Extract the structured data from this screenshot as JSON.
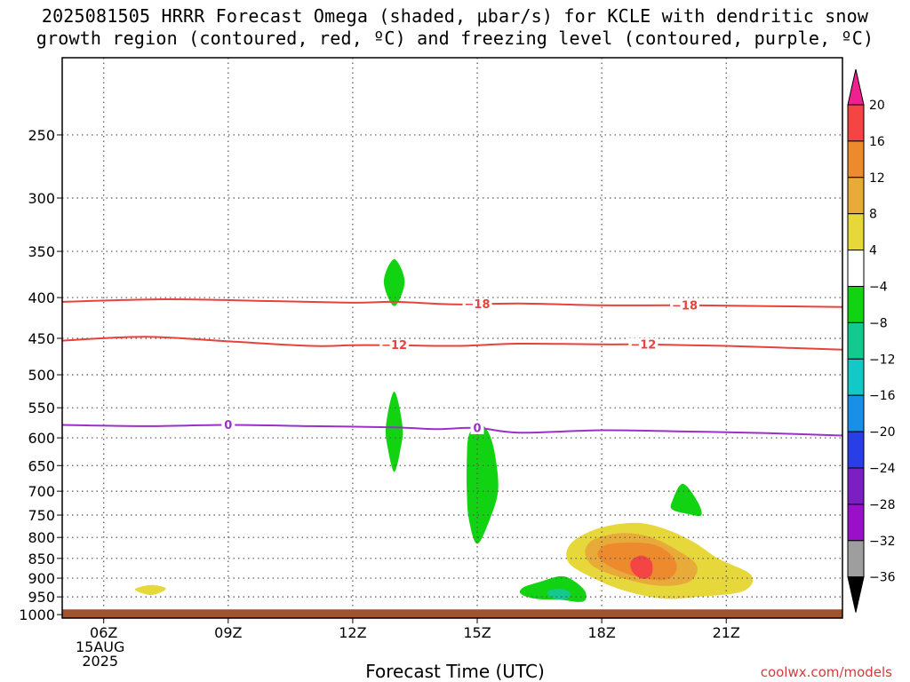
{
  "title": {
    "line1": "2025081505 HRRR Forecast Omega (shaded, μbar/s) for KCLE with dendritic snow",
    "line2": "growth region (contoured, red, ºC) and freezing level (contoured, purple, ºC)"
  },
  "credit": "coolwx.com/models",
  "chart_data": {
    "type": "contour",
    "xlabel": "Forecast Time (UTC)",
    "x_ticks": [
      "06Z",
      "09Z",
      "12Z",
      "15Z",
      "18Z",
      "21Z"
    ],
    "x_tick_hours": [
      6,
      9,
      12,
      15,
      18,
      21
    ],
    "x_date_label": [
      "15AUG",
      "2025"
    ],
    "xlim_hours": [
      5,
      23.8
    ],
    "y_ticks": [
      250,
      300,
      350,
      400,
      450,
      500,
      550,
      600,
      650,
      700,
      750,
      800,
      850,
      900,
      950,
      1000
    ],
    "ylim_hpa": [
      200,
      1010
    ],
    "y_scale": "log-pressure, inverted",
    "grid": "dotted",
    "ground": {
      "from_hpa": 985,
      "color": "#a0522d"
    },
    "contours": [
      {
        "name": "-18",
        "color": "#e8423c",
        "label_hours": [
          15,
          20
        ],
        "points": [
          [
            5,
            405
          ],
          [
            7.5,
            402
          ],
          [
            10,
            404
          ],
          [
            12,
            406
          ],
          [
            13,
            405
          ],
          [
            14.5,
            408
          ],
          [
            16,
            407
          ],
          [
            18,
            409
          ],
          [
            20,
            409
          ],
          [
            22,
            410
          ],
          [
            23.8,
            411
          ]
        ]
      },
      {
        "name": "-12",
        "color": "#e8423c",
        "label_hours": [
          13,
          19
        ],
        "points": [
          [
            5,
            453
          ],
          [
            7,
            448
          ],
          [
            9,
            454
          ],
          [
            11,
            460
          ],
          [
            12,
            459
          ],
          [
            13,
            459
          ],
          [
            14.5,
            460
          ],
          [
            16,
            457
          ],
          [
            18,
            458
          ],
          [
            19,
            458
          ],
          [
            21,
            460
          ],
          [
            23.8,
            465
          ]
        ]
      },
      {
        "name": "0",
        "color": "#9b2fc9",
        "label_hours": [
          9,
          15
        ],
        "points": [
          [
            5,
            578
          ],
          [
            7,
            580
          ],
          [
            9,
            578
          ],
          [
            11,
            580
          ],
          [
            13,
            582
          ],
          [
            14,
            585
          ],
          [
            15,
            583
          ],
          [
            16,
            591
          ],
          [
            18,
            587
          ],
          [
            20,
            589
          ],
          [
            22,
            592
          ],
          [
            23.8,
            596
          ]
        ]
      }
    ],
    "shaded": [
      {
        "label": "-4 to -8",
        "color": "#11d311",
        "points": [
          [
            13,
            358
          ],
          [
            13.25,
            382
          ],
          [
            13,
            410
          ],
          [
            12.75,
            382
          ]
        ]
      },
      {
        "label": "-4 to -8",
        "color": "#11d311",
        "points": [
          [
            13,
            525
          ],
          [
            13.2,
            580
          ],
          [
            13.15,
            620
          ],
          [
            13,
            662
          ],
          [
            12.85,
            620
          ],
          [
            12.8,
            580
          ]
        ]
      },
      {
        "label": "-4 to -8",
        "color": "#11d311",
        "points": [
          [
            15.05,
            575
          ],
          [
            15.3,
            595
          ],
          [
            15.45,
            640
          ],
          [
            15.5,
            700
          ],
          [
            15.3,
            760
          ],
          [
            15,
            815
          ],
          [
            14.8,
            760
          ],
          [
            14.75,
            700
          ],
          [
            14.75,
            640
          ],
          [
            14.8,
            595
          ]
        ]
      },
      {
        "label": "-4 to -8",
        "color": "#11d311",
        "points": [
          [
            19.95,
            685
          ],
          [
            20.3,
            720
          ],
          [
            20.4,
            750
          ],
          [
            20.1,
            748
          ],
          [
            19.7,
            738
          ],
          [
            19.7,
            720
          ]
        ]
      },
      {
        "label": "-4 to -8",
        "color": "#11d311",
        "points": [
          [
            16.1,
            925
          ],
          [
            16.5,
            910
          ],
          [
            17,
            895
          ],
          [
            17.3,
            905
          ],
          [
            17.6,
            935
          ],
          [
            17.55,
            963
          ],
          [
            17,
            958
          ],
          [
            16.4,
            955
          ],
          [
            16.05,
            942
          ]
        ]
      },
      {
        "label": "-8 to -12",
        "color": "#13c990",
        "points": [
          [
            16.7,
            935
          ],
          [
            17,
            928
          ],
          [
            17.25,
            940
          ],
          [
            17.1,
            958
          ],
          [
            16.8,
            952
          ]
        ]
      },
      {
        "label": "4 to 8",
        "color": "#e6d83a",
        "points": [
          [
            7.15,
            918
          ],
          [
            7.5,
            928
          ],
          [
            7.15,
            945
          ],
          [
            6.75,
            930
          ]
        ]
      },
      {
        "label": "4 to 8",
        "color": "#e6d83a",
        "points": [
          [
            18.8,
            767
          ],
          [
            19.5,
            780
          ],
          [
            20.2,
            810
          ],
          [
            20.8,
            850
          ],
          [
            21.6,
            892
          ],
          [
            21.4,
            935
          ],
          [
            20.3,
            950
          ],
          [
            19.5,
            955
          ],
          [
            18.6,
            935
          ],
          [
            17.8,
            900
          ],
          [
            17.2,
            860
          ],
          [
            17.25,
            815
          ],
          [
            17.9,
            780
          ]
        ]
      },
      {
        "label": "8 to 12",
        "color": "#e8ab3a",
        "points": [
          [
            18.5,
            790
          ],
          [
            19.2,
            800
          ],
          [
            19.9,
            835
          ],
          [
            20.3,
            870
          ],
          [
            20.1,
            910
          ],
          [
            19.4,
            920
          ],
          [
            18.5,
            900
          ],
          [
            17.8,
            870
          ],
          [
            17.6,
            835
          ],
          [
            17.8,
            805
          ]
        ]
      },
      {
        "label": "12 to 16",
        "color": "#ee8a2e",
        "points": [
          [
            18.7,
            812
          ],
          [
            19.3,
            818
          ],
          [
            19.7,
            845
          ],
          [
            19.8,
            880
          ],
          [
            19.5,
            905
          ],
          [
            18.8,
            895
          ],
          [
            18.2,
            870
          ],
          [
            17.9,
            842
          ],
          [
            18.1,
            818
          ]
        ]
      },
      {
        "label": "16 to 20",
        "color": "#f44444",
        "points": [
          [
            18.95,
            843
          ],
          [
            19.2,
            858
          ],
          [
            19.2,
            890
          ],
          [
            19,
            902
          ],
          [
            18.75,
            885
          ],
          [
            18.7,
            858
          ]
        ]
      }
    ],
    "colorbar": {
      "levels": [
        20,
        16,
        12,
        8,
        4,
        -4,
        -8,
        -12,
        -16,
        -20,
        -24,
        -28,
        -32,
        -36
      ],
      "colors": [
        "#f02090",
        "#f44444",
        "#ee8a2e",
        "#e8ab3a",
        "#e6d83a",
        "#ffffff",
        "#11d311",
        "#13c990",
        "#14c8c8",
        "#1a8fe8",
        "#2a3ee6",
        "#7b1fc2",
        "#9a10c8",
        "#9e9e9e",
        "#000000"
      ]
    }
  }
}
